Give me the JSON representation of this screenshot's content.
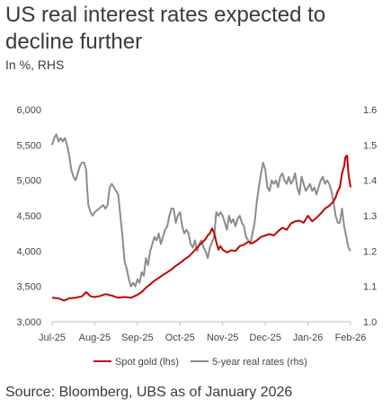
{
  "title": "US real interest rates expected to decline further",
  "subtitle": "In %, RHS",
  "source": "Source: Bloomberg, UBS as of January 2026",
  "colors": {
    "gold": "#c00000",
    "rates": "#8c8c8c",
    "axis": "#bfbfbf"
  },
  "chart_data": {
    "type": "line",
    "title": "US real interest rates expected to decline further",
    "subtitle": "In %, RHS",
    "x_categories": [
      "Jul-25",
      "Aug-25",
      "Sep-25",
      "Oct-25",
      "Nov-25",
      "Dec-25",
      "Jan-26",
      "Feb-26"
    ],
    "x_range": [
      0,
      7
    ],
    "left_axis": {
      "ticks": [
        "3,000",
        "3,500",
        "4,000",
        "4,500",
        "5,000",
        "5,500",
        "6,000"
      ],
      "range": [
        3000,
        6000
      ]
    },
    "right_axis": {
      "ticks": [
        "1.0",
        "1.1",
        "1.2",
        "1.3",
        "1.4",
        "1.5",
        "1.6"
      ],
      "range": [
        1.0,
        1.6
      ]
    },
    "legend": {
      "placement": "bottom"
    },
    "series": [
      {
        "name": "Spot gold (lhs)",
        "axis": "left",
        "color": "#c00000",
        "points": [
          [
            0.0,
            3340
          ],
          [
            0.15,
            3330
          ],
          [
            0.28,
            3300
          ],
          [
            0.4,
            3330
          ],
          [
            0.55,
            3340
          ],
          [
            0.7,
            3360
          ],
          [
            0.8,
            3420
          ],
          [
            0.9,
            3360
          ],
          [
            1.0,
            3350
          ],
          [
            1.1,
            3360
          ],
          [
            1.25,
            3390
          ],
          [
            1.4,
            3370
          ],
          [
            1.55,
            3340
          ],
          [
            1.7,
            3350
          ],
          [
            1.85,
            3340
          ],
          [
            2.0,
            3380
          ],
          [
            2.1,
            3420
          ],
          [
            2.2,
            3480
          ],
          [
            2.3,
            3530
          ],
          [
            2.4,
            3580
          ],
          [
            2.5,
            3620
          ],
          [
            2.6,
            3660
          ],
          [
            2.7,
            3700
          ],
          [
            2.8,
            3740
          ],
          [
            2.9,
            3790
          ],
          [
            3.0,
            3830
          ],
          [
            3.1,
            3880
          ],
          [
            3.2,
            3920
          ],
          [
            3.3,
            3980
          ],
          [
            3.4,
            4050
          ],
          [
            3.5,
            4110
          ],
          [
            3.6,
            4170
          ],
          [
            3.65,
            4220
          ],
          [
            3.7,
            4250
          ],
          [
            3.75,
            4320
          ],
          [
            3.8,
            4260
          ],
          [
            3.85,
            4130
          ],
          [
            3.9,
            4020
          ],
          [
            3.95,
            4070
          ],
          [
            4.0,
            4020
          ],
          [
            4.1,
            3980
          ],
          [
            4.2,
            4010
          ],
          [
            4.3,
            4000
          ],
          [
            4.4,
            4070
          ],
          [
            4.5,
            4090
          ],
          [
            4.6,
            4130
          ],
          [
            4.7,
            4110
          ],
          [
            4.8,
            4150
          ],
          [
            4.9,
            4200
          ],
          [
            5.0,
            4220
          ],
          [
            5.1,
            4240
          ],
          [
            5.2,
            4220
          ],
          [
            5.3,
            4280
          ],
          [
            5.4,
            4330
          ],
          [
            5.5,
            4300
          ],
          [
            5.6,
            4390
          ],
          [
            5.7,
            4420
          ],
          [
            5.8,
            4430
          ],
          [
            5.9,
            4400
          ],
          [
            6.0,
            4500
          ],
          [
            6.1,
            4420
          ],
          [
            6.2,
            4470
          ],
          [
            6.3,
            4530
          ],
          [
            6.4,
            4600
          ],
          [
            6.5,
            4640
          ],
          [
            6.6,
            4700
          ],
          [
            6.65,
            4760
          ],
          [
            6.7,
            4850
          ],
          [
            6.75,
            4900
          ],
          [
            6.8,
            5100
          ],
          [
            6.85,
            5200
          ],
          [
            6.88,
            5330
          ],
          [
            6.92,
            5350
          ],
          [
            6.95,
            5100
          ],
          [
            7.0,
            4900
          ]
        ]
      },
      {
        "name": "5-year real rates (rhs)",
        "axis": "right",
        "color": "#8c8c8c",
        "points": [
          [
            0.0,
            1.5
          ],
          [
            0.05,
            1.52
          ],
          [
            0.1,
            1.53
          ],
          [
            0.15,
            1.51
          ],
          [
            0.2,
            1.52
          ],
          [
            0.25,
            1.51
          ],
          [
            0.3,
            1.52
          ],
          [
            0.35,
            1.5
          ],
          [
            0.4,
            1.47
          ],
          [
            0.45,
            1.43
          ],
          [
            0.5,
            1.41
          ],
          [
            0.55,
            1.4
          ],
          [
            0.6,
            1.42
          ],
          [
            0.65,
            1.44
          ],
          [
            0.7,
            1.45
          ],
          [
            0.75,
            1.45
          ],
          [
            0.8,
            1.43
          ],
          [
            0.82,
            1.38
          ],
          [
            0.85,
            1.33
          ],
          [
            0.9,
            1.31
          ],
          [
            0.95,
            1.3
          ],
          [
            1.0,
            1.31
          ],
          [
            1.1,
            1.32
          ],
          [
            1.2,
            1.33
          ],
          [
            1.25,
            1.32
          ],
          [
            1.3,
            1.33
          ],
          [
            1.35,
            1.38
          ],
          [
            1.4,
            1.39
          ],
          [
            1.45,
            1.38
          ],
          [
            1.5,
            1.37
          ],
          [
            1.55,
            1.36
          ],
          [
            1.6,
            1.3
          ],
          [
            1.65,
            1.24
          ],
          [
            1.7,
            1.17
          ],
          [
            1.75,
            1.15
          ],
          [
            1.8,
            1.12
          ],
          [
            1.85,
            1.1
          ],
          [
            1.9,
            1.11
          ],
          [
            1.95,
            1.1
          ],
          [
            2.0,
            1.12
          ],
          [
            2.05,
            1.11
          ],
          [
            2.1,
            1.14
          ],
          [
            2.15,
            1.13
          ],
          [
            2.2,
            1.18
          ],
          [
            2.25,
            1.16
          ],
          [
            2.3,
            1.2
          ],
          [
            2.35,
            1.22
          ],
          [
            2.4,
            1.24
          ],
          [
            2.45,
            1.23
          ],
          [
            2.5,
            1.25
          ],
          [
            2.55,
            1.22
          ],
          [
            2.6,
            1.24
          ],
          [
            2.65,
            1.26
          ],
          [
            2.7,
            1.27
          ],
          [
            2.75,
            1.3
          ],
          [
            2.8,
            1.32
          ],
          [
            2.85,
            1.32
          ],
          [
            2.9,
            1.28
          ],
          [
            2.95,
            1.3
          ],
          [
            3.0,
            1.31
          ],
          [
            3.05,
            1.27
          ],
          [
            3.1,
            1.25
          ],
          [
            3.15,
            1.26
          ],
          [
            3.2,
            1.25
          ],
          [
            3.25,
            1.22
          ],
          [
            3.3,
            1.21
          ],
          [
            3.35,
            1.23
          ],
          [
            3.4,
            1.2
          ],
          [
            3.45,
            1.22
          ],
          [
            3.5,
            1.23
          ],
          [
            3.55,
            1.21
          ],
          [
            3.6,
            1.2
          ],
          [
            3.65,
            1.18
          ],
          [
            3.7,
            1.21
          ],
          [
            3.8,
            1.24
          ],
          [
            3.85,
            1.31
          ],
          [
            3.9,
            1.3
          ],
          [
            3.95,
            1.31
          ],
          [
            4.0,
            1.3
          ],
          [
            4.05,
            1.28
          ],
          [
            4.1,
            1.26
          ],
          [
            4.15,
            1.3
          ],
          [
            4.2,
            1.28
          ],
          [
            4.25,
            1.29
          ],
          [
            4.3,
            1.27
          ],
          [
            4.35,
            1.29
          ],
          [
            4.4,
            1.3
          ],
          [
            4.45,
            1.28
          ],
          [
            4.5,
            1.27
          ],
          [
            4.55,
            1.24
          ],
          [
            4.6,
            1.23
          ],
          [
            4.65,
            1.22
          ],
          [
            4.7,
            1.25
          ],
          [
            4.75,
            1.28
          ],
          [
            4.8,
            1.34
          ],
          [
            4.85,
            1.38
          ],
          [
            4.9,
            1.42
          ],
          [
            4.95,
            1.45
          ],
          [
            5.0,
            1.43
          ],
          [
            5.05,
            1.38
          ],
          [
            5.1,
            1.37
          ],
          [
            5.15,
            1.4
          ],
          [
            5.2,
            1.39
          ],
          [
            5.25,
            1.4
          ],
          [
            5.3,
            1.38
          ],
          [
            5.35,
            1.41
          ],
          [
            5.4,
            1.42
          ],
          [
            5.45,
            1.4
          ],
          [
            5.5,
            1.39
          ],
          [
            5.55,
            1.41
          ],
          [
            5.6,
            1.39
          ],
          [
            5.65,
            1.4
          ],
          [
            5.7,
            1.42
          ],
          [
            5.75,
            1.38
          ],
          [
            5.8,
            1.36
          ],
          [
            5.85,
            1.41
          ],
          [
            5.9,
            1.39
          ],
          [
            5.95,
            1.37
          ],
          [
            6.0,
            1.38
          ],
          [
            6.05,
            1.39
          ],
          [
            6.1,
            1.37
          ],
          [
            6.15,
            1.38
          ],
          [
            6.2,
            1.36
          ],
          [
            6.25,
            1.38
          ],
          [
            6.3,
            1.4
          ],
          [
            6.35,
            1.41
          ],
          [
            6.4,
            1.39
          ],
          [
            6.45,
            1.4
          ],
          [
            6.5,
            1.39
          ],
          [
            6.55,
            1.37
          ],
          [
            6.6,
            1.34
          ],
          [
            6.65,
            1.3
          ],
          [
            6.7,
            1.28
          ],
          [
            6.75,
            1.28
          ],
          [
            6.8,
            1.32
          ],
          [
            6.85,
            1.27
          ],
          [
            6.9,
            1.24
          ],
          [
            6.95,
            1.21
          ],
          [
            7.0,
            1.2
          ]
        ]
      }
    ]
  }
}
